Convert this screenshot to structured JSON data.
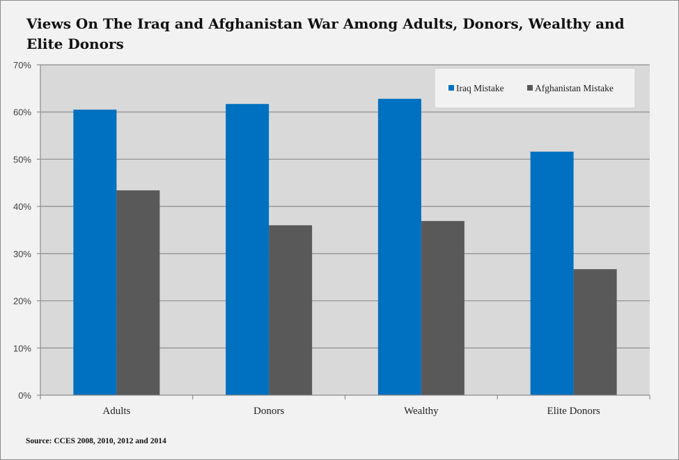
{
  "chart_data": {
    "type": "bar",
    "title": "Views On The Iraq and Afghanistan War Among Adults, Donors, Wealthy and Elite Donors",
    "xlabel": "",
    "ylabel": "",
    "categories": [
      "Adults",
      "Donors",
      "Wealthy",
      "Elite Donors"
    ],
    "series": [
      {
        "name": "Iraq Mistake",
        "color": "#0070c0",
        "values": [
          60.5,
          61.7,
          62.8,
          51.6
        ]
      },
      {
        "name": "Afghanistan Mistake",
        "color": "#595959",
        "values": [
          43.4,
          36.0,
          36.9,
          26.7
        ]
      }
    ],
    "ylim": [
      0,
      70
    ],
    "yticks": [
      0,
      10,
      20,
      30,
      40,
      50,
      60,
      70
    ],
    "ytick_labels": [
      "0%",
      "10%",
      "20%",
      "30%",
      "40%",
      "50%",
      "60%",
      "70%"
    ],
    "grid": true,
    "legend_position": "top-right",
    "plot_background": "#d9d9d9",
    "source": "Source: CCES 2008, 2010, 2012 and 2014"
  }
}
